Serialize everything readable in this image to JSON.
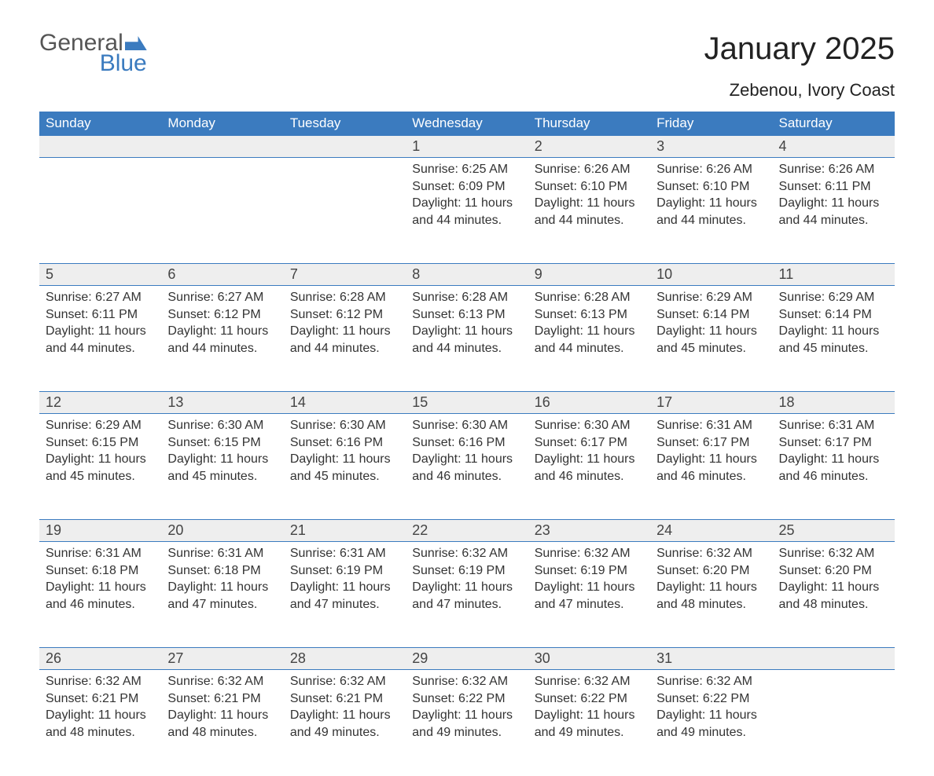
{
  "logo": {
    "part1": "General",
    "part2": "Blue"
  },
  "title": "January 2025",
  "subtitle": "Zebenou, Ivory Coast",
  "colors": {
    "accent": "#3b7bbf",
    "headerText": "#ffffff",
    "dayNumBg": "#eeeeee",
    "bodyText": "#333333",
    "background": "#ffffff"
  },
  "headers": [
    "Sunday",
    "Monday",
    "Tuesday",
    "Wednesday",
    "Thursday",
    "Friday",
    "Saturday"
  ],
  "weeks": [
    [
      null,
      null,
      null,
      {
        "n": "1",
        "sr": "Sunrise: 6:25 AM",
        "ss": "Sunset: 6:09 PM",
        "d1": "Daylight: 11 hours",
        "d2": "and 44 minutes."
      },
      {
        "n": "2",
        "sr": "Sunrise: 6:26 AM",
        "ss": "Sunset: 6:10 PM",
        "d1": "Daylight: 11 hours",
        "d2": "and 44 minutes."
      },
      {
        "n": "3",
        "sr": "Sunrise: 6:26 AM",
        "ss": "Sunset: 6:10 PM",
        "d1": "Daylight: 11 hours",
        "d2": "and 44 minutes."
      },
      {
        "n": "4",
        "sr": "Sunrise: 6:26 AM",
        "ss": "Sunset: 6:11 PM",
        "d1": "Daylight: 11 hours",
        "d2": "and 44 minutes."
      }
    ],
    [
      {
        "n": "5",
        "sr": "Sunrise: 6:27 AM",
        "ss": "Sunset: 6:11 PM",
        "d1": "Daylight: 11 hours",
        "d2": "and 44 minutes."
      },
      {
        "n": "6",
        "sr": "Sunrise: 6:27 AM",
        "ss": "Sunset: 6:12 PM",
        "d1": "Daylight: 11 hours",
        "d2": "and 44 minutes."
      },
      {
        "n": "7",
        "sr": "Sunrise: 6:28 AM",
        "ss": "Sunset: 6:12 PM",
        "d1": "Daylight: 11 hours",
        "d2": "and 44 minutes."
      },
      {
        "n": "8",
        "sr": "Sunrise: 6:28 AM",
        "ss": "Sunset: 6:13 PM",
        "d1": "Daylight: 11 hours",
        "d2": "and 44 minutes."
      },
      {
        "n": "9",
        "sr": "Sunrise: 6:28 AM",
        "ss": "Sunset: 6:13 PM",
        "d1": "Daylight: 11 hours",
        "d2": "and 44 minutes."
      },
      {
        "n": "10",
        "sr": "Sunrise: 6:29 AM",
        "ss": "Sunset: 6:14 PM",
        "d1": "Daylight: 11 hours",
        "d2": "and 45 minutes."
      },
      {
        "n": "11",
        "sr": "Sunrise: 6:29 AM",
        "ss": "Sunset: 6:14 PM",
        "d1": "Daylight: 11 hours",
        "d2": "and 45 minutes."
      }
    ],
    [
      {
        "n": "12",
        "sr": "Sunrise: 6:29 AM",
        "ss": "Sunset: 6:15 PM",
        "d1": "Daylight: 11 hours",
        "d2": "and 45 minutes."
      },
      {
        "n": "13",
        "sr": "Sunrise: 6:30 AM",
        "ss": "Sunset: 6:15 PM",
        "d1": "Daylight: 11 hours",
        "d2": "and 45 minutes."
      },
      {
        "n": "14",
        "sr": "Sunrise: 6:30 AM",
        "ss": "Sunset: 6:16 PM",
        "d1": "Daylight: 11 hours",
        "d2": "and 45 minutes."
      },
      {
        "n": "15",
        "sr": "Sunrise: 6:30 AM",
        "ss": "Sunset: 6:16 PM",
        "d1": "Daylight: 11 hours",
        "d2": "and 46 minutes."
      },
      {
        "n": "16",
        "sr": "Sunrise: 6:30 AM",
        "ss": "Sunset: 6:17 PM",
        "d1": "Daylight: 11 hours",
        "d2": "and 46 minutes."
      },
      {
        "n": "17",
        "sr": "Sunrise: 6:31 AM",
        "ss": "Sunset: 6:17 PM",
        "d1": "Daylight: 11 hours",
        "d2": "and 46 minutes."
      },
      {
        "n": "18",
        "sr": "Sunrise: 6:31 AM",
        "ss": "Sunset: 6:17 PM",
        "d1": "Daylight: 11 hours",
        "d2": "and 46 minutes."
      }
    ],
    [
      {
        "n": "19",
        "sr": "Sunrise: 6:31 AM",
        "ss": "Sunset: 6:18 PM",
        "d1": "Daylight: 11 hours",
        "d2": "and 46 minutes."
      },
      {
        "n": "20",
        "sr": "Sunrise: 6:31 AM",
        "ss": "Sunset: 6:18 PM",
        "d1": "Daylight: 11 hours",
        "d2": "and 47 minutes."
      },
      {
        "n": "21",
        "sr": "Sunrise: 6:31 AM",
        "ss": "Sunset: 6:19 PM",
        "d1": "Daylight: 11 hours",
        "d2": "and 47 minutes."
      },
      {
        "n": "22",
        "sr": "Sunrise: 6:32 AM",
        "ss": "Sunset: 6:19 PM",
        "d1": "Daylight: 11 hours",
        "d2": "and 47 minutes."
      },
      {
        "n": "23",
        "sr": "Sunrise: 6:32 AM",
        "ss": "Sunset: 6:19 PM",
        "d1": "Daylight: 11 hours",
        "d2": "and 47 minutes."
      },
      {
        "n": "24",
        "sr": "Sunrise: 6:32 AM",
        "ss": "Sunset: 6:20 PM",
        "d1": "Daylight: 11 hours",
        "d2": "and 48 minutes."
      },
      {
        "n": "25",
        "sr": "Sunrise: 6:32 AM",
        "ss": "Sunset: 6:20 PM",
        "d1": "Daylight: 11 hours",
        "d2": "and 48 minutes."
      }
    ],
    [
      {
        "n": "26",
        "sr": "Sunrise: 6:32 AM",
        "ss": "Sunset: 6:21 PM",
        "d1": "Daylight: 11 hours",
        "d2": "and 48 minutes."
      },
      {
        "n": "27",
        "sr": "Sunrise: 6:32 AM",
        "ss": "Sunset: 6:21 PM",
        "d1": "Daylight: 11 hours",
        "d2": "and 48 minutes."
      },
      {
        "n": "28",
        "sr": "Sunrise: 6:32 AM",
        "ss": "Sunset: 6:21 PM",
        "d1": "Daylight: 11 hours",
        "d2": "and 49 minutes."
      },
      {
        "n": "29",
        "sr": "Sunrise: 6:32 AM",
        "ss": "Sunset: 6:22 PM",
        "d1": "Daylight: 11 hours",
        "d2": "and 49 minutes."
      },
      {
        "n": "30",
        "sr": "Sunrise: 6:32 AM",
        "ss": "Sunset: 6:22 PM",
        "d1": "Daylight: 11 hours",
        "d2": "and 49 minutes."
      },
      {
        "n": "31",
        "sr": "Sunrise: 6:32 AM",
        "ss": "Sunset: 6:22 PM",
        "d1": "Daylight: 11 hours",
        "d2": "and 49 minutes."
      },
      null
    ]
  ]
}
